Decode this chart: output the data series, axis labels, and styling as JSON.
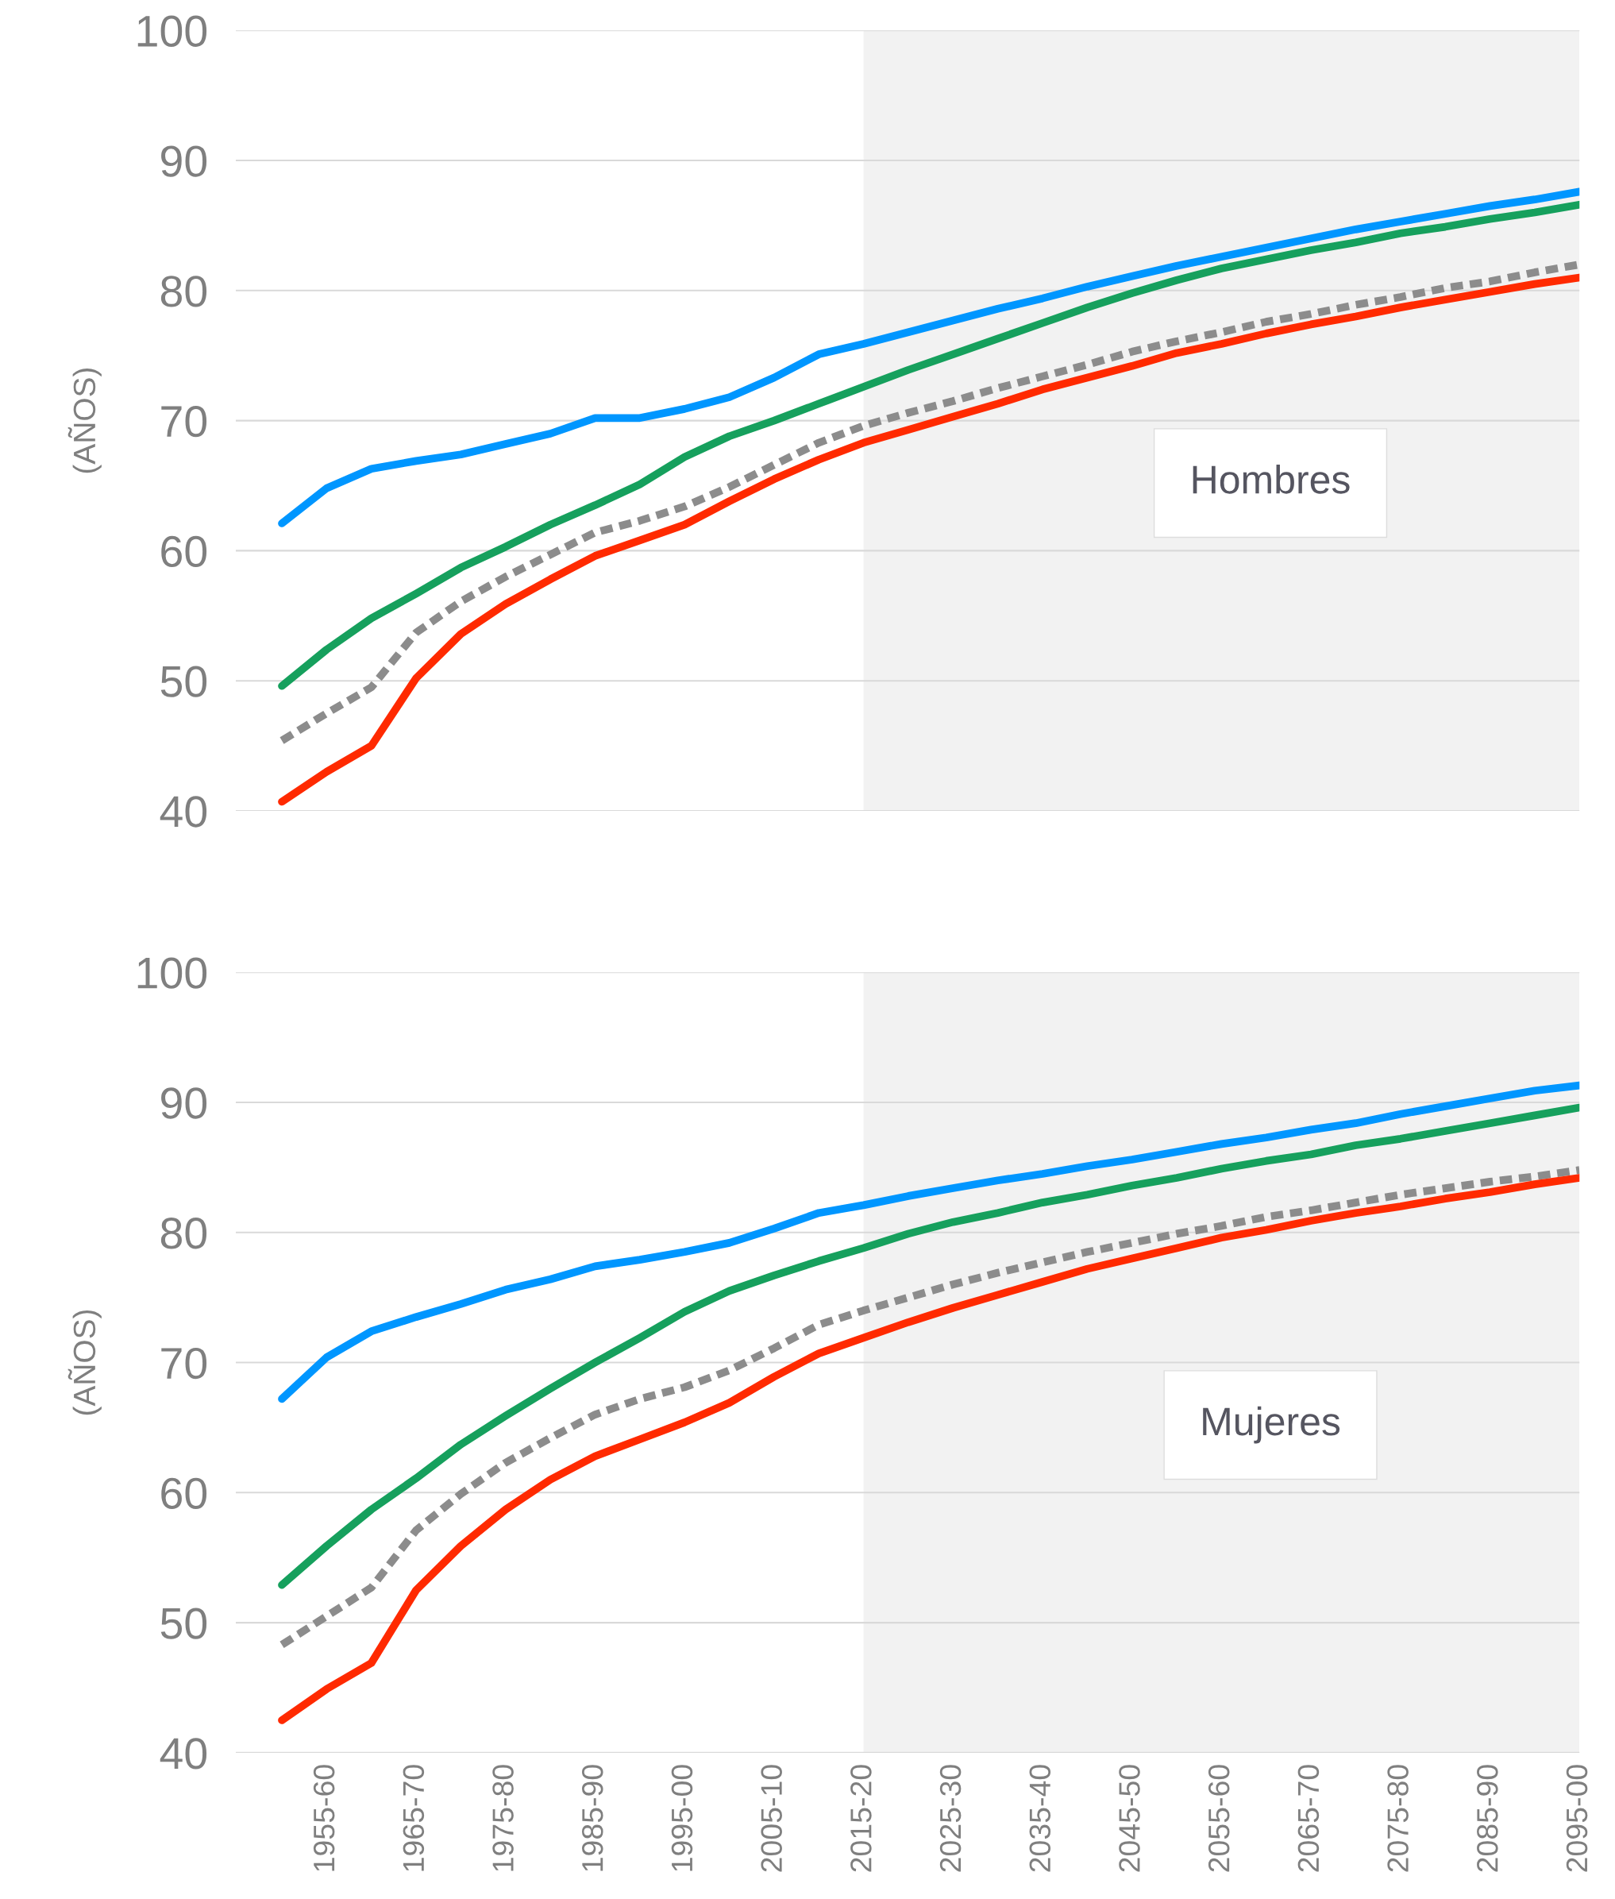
{
  "chart_data": [
    {
      "type": "line",
      "ylabel": "(AÑOS)",
      "ylim": [
        40,
        100
      ],
      "yticks": [
        40,
        50,
        60,
        70,
        80,
        90,
        100
      ],
      "grid": "y",
      "tick_labels": "y",
      "legend": false,
      "categories": [
        null,
        "1955-60",
        null,
        "1965-70",
        null,
        "1975-80",
        null,
        "1985-90",
        null,
        "1995-00",
        null,
        "2005-10",
        null,
        "2015-20",
        null,
        "2025-30",
        null,
        "2035-40",
        null,
        "2045-50",
        null,
        "2055-60",
        null,
        "2065-70",
        null,
        "2075-80",
        null,
        "2085-90",
        null,
        "2095-00"
      ],
      "bands": [
        {
          "axis": "x",
          "from": "2015-20",
          "to": "2095-00",
          "color": "#f2f2f2"
        }
      ],
      "annotations": [
        "Hombres"
      ],
      "series": [
        {
          "color": "#0096ff",
          "line_style": "solid",
          "values": [
            62.1,
            64.8,
            66.3,
            66.9,
            67.4,
            68.2,
            69.0,
            70.2,
            70.2,
            70.9,
            71.8,
            73.3,
            75.1,
            75.9,
            76.8,
            77.7,
            78.6,
            79.4,
            80.3,
            81.1,
            81.9,
            82.6,
            83.3,
            84.0,
            84.7,
            85.3,
            85.9,
            86.5,
            87.0,
            87.6
          ]
        },
        {
          "color": "#16a05d",
          "line_style": "solid",
          "values": [
            49.6,
            52.4,
            54.8,
            56.7,
            58.7,
            60.3,
            62.0,
            63.5,
            65.1,
            67.2,
            68.8,
            70.0,
            71.3,
            72.6,
            73.9,
            75.1,
            76.3,
            77.5,
            78.7,
            79.8,
            80.8,
            81.7,
            82.4,
            83.1,
            83.7,
            84.4,
            84.9,
            85.5,
            86.0,
            86.6
          ]
        },
        {
          "color": "#8c8c8c",
          "line_style": "dashed",
          "values": [
            45.4,
            47.5,
            49.5,
            53.7,
            56.1,
            58.0,
            59.7,
            61.4,
            62.3,
            63.4,
            64.9,
            66.6,
            68.3,
            69.6,
            70.6,
            71.5,
            72.5,
            73.4,
            74.3,
            75.3,
            76.1,
            76.8,
            77.6,
            78.2,
            78.9,
            79.5,
            80.2,
            80.7,
            81.4,
            82.0
          ]
        },
        {
          "color": "#ff2a00",
          "line_style": "solid",
          "values": [
            40.7,
            43.0,
            45.0,
            50.2,
            53.6,
            55.9,
            57.8,
            59.6,
            60.8,
            62.0,
            63.8,
            65.5,
            67.0,
            68.3,
            69.3,
            70.3,
            71.3,
            72.4,
            73.3,
            74.2,
            75.2,
            75.9,
            76.7,
            77.4,
            78.0,
            78.7,
            79.3,
            79.9,
            80.5,
            81.0
          ]
        }
      ]
    },
    {
      "type": "line",
      "ylabel": "(AÑOS)",
      "ylim": [
        40,
        100
      ],
      "yticks": [
        40,
        50,
        60,
        70,
        80,
        90,
        100
      ],
      "grid": "y",
      "legend": false,
      "categories": [
        null,
        "1955-60",
        null,
        "1965-70",
        null,
        "1975-80",
        null,
        "1985-90",
        null,
        "1995-00",
        null,
        "2005-10",
        null,
        "2015-20",
        null,
        "2025-30",
        null,
        "2035-40",
        null,
        "2045-50",
        null,
        "2055-60",
        null,
        "2065-70",
        null,
        "2075-80",
        null,
        "2085-90",
        null,
        "2095-00"
      ],
      "bands": [
        {
          "axis": "x",
          "from": "2015-20",
          "to": "2095-00",
          "color": "#f2f2f2"
        }
      ],
      "annotations": [
        "Mujeres"
      ],
      "series": [
        {
          "color": "#0096ff",
          "line_style": "solid",
          "values": [
            67.2,
            70.4,
            72.4,
            73.5,
            74.5,
            75.6,
            76.4,
            77.4,
            77.9,
            78.5,
            79.2,
            80.3,
            81.5,
            82.1,
            82.8,
            83.4,
            84.0,
            84.5,
            85.1,
            85.6,
            86.2,
            86.8,
            87.3,
            87.9,
            88.4,
            89.1,
            89.7,
            90.3,
            90.9,
            91.3
          ]
        },
        {
          "color": "#16a05d",
          "line_style": "solid",
          "values": [
            52.9,
            55.9,
            58.7,
            61.1,
            63.7,
            65.9,
            68.0,
            70.0,
            71.9,
            73.9,
            75.5,
            76.7,
            77.8,
            78.8,
            79.9,
            80.8,
            81.5,
            82.3,
            82.9,
            83.6,
            84.2,
            84.9,
            85.5,
            86.0,
            86.7,
            87.2,
            87.8,
            88.4,
            89.0,
            89.6
          ]
        },
        {
          "color": "#8c8c8c",
          "line_style": "dashed",
          "values": [
            48.3,
            50.5,
            52.7,
            57.1,
            59.9,
            62.3,
            64.2,
            66.0,
            67.2,
            68.1,
            69.4,
            71.1,
            72.9,
            74.0,
            75.0,
            76.0,
            76.9,
            77.7,
            78.5,
            79.2,
            79.9,
            80.5,
            81.2,
            81.7,
            82.3,
            82.9,
            83.4,
            83.9,
            84.3,
            84.8
          ]
        },
        {
          "color": "#ff2a00",
          "line_style": "solid",
          "values": [
            42.5,
            44.9,
            46.9,
            52.5,
            55.9,
            58.7,
            61.0,
            62.8,
            64.1,
            65.4,
            66.9,
            68.9,
            70.7,
            71.9,
            73.1,
            74.2,
            75.2,
            76.2,
            77.2,
            78.0,
            78.8,
            79.6,
            80.2,
            80.9,
            81.5,
            82.0,
            82.6,
            83.1,
            83.7,
            84.2
          ]
        }
      ]
    }
  ]
}
